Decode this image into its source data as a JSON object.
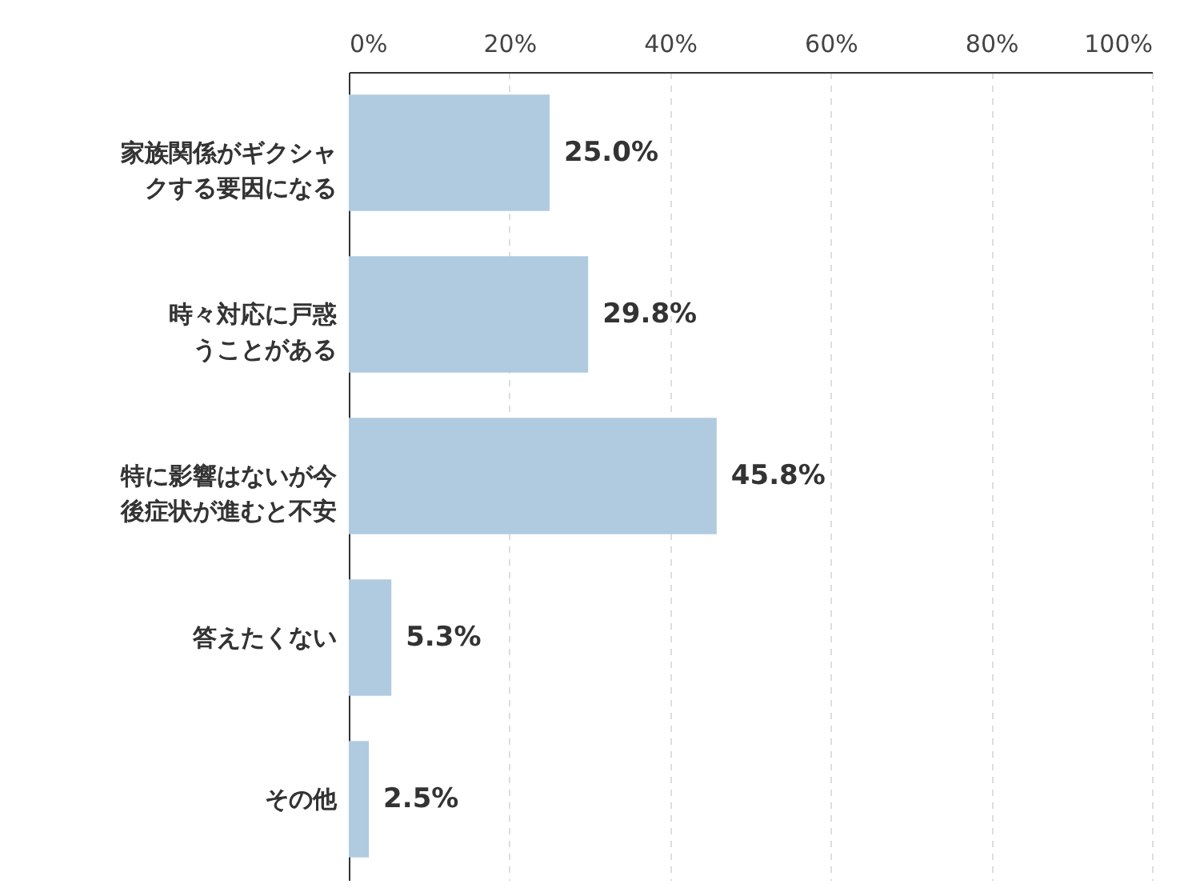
{
  "chart_data": {
    "type": "bar",
    "orientation": "horizontal",
    "categories": [
      "家族関係がギクシャクする要因になる",
      "時々対応に戸惑うことがある",
      "特に影響はないが今後症状が進むと不安",
      "答えたくない",
      "その他"
    ],
    "values": [
      25.0,
      29.8,
      45.8,
      5.3,
      2.5
    ],
    "value_labels": [
      "25.0%",
      "29.8%",
      "45.8%",
      "5.3%",
      "2.5%"
    ],
    "color": "#b0cbe0",
    "xlim": [
      0,
      100
    ],
    "xticks": [
      {
        "value": 0,
        "label": "0%"
      },
      {
        "value": 20,
        "label": "20%"
      },
      {
        "value": 40,
        "label": "40%"
      },
      {
        "value": 60,
        "label": "60%"
      },
      {
        "value": 80,
        "label": "80%"
      },
      {
        "value": 100,
        "label": "100%"
      }
    ],
    "grid": "x"
  }
}
